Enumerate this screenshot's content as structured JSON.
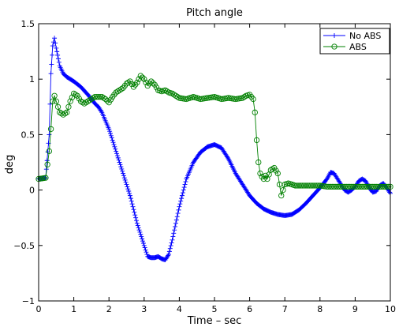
{
  "chart_data": {
    "type": "line",
    "title": "Pitch angle",
    "xlabel": "Time – sec",
    "ylabel": "deg",
    "xlim": [
      0,
      10
    ],
    "ylim": [
      -1,
      1.5
    ],
    "xticks": [
      0,
      1,
      2,
      3,
      4,
      5,
      6,
      7,
      8,
      9,
      10
    ],
    "xtick_labels": [
      "0",
      "1",
      "2",
      "3",
      "4",
      "5",
      "6",
      "7",
      "8",
      "9",
      "10"
    ],
    "yticks": [
      -1,
      -0.5,
      0,
      0.5,
      1,
      1.5
    ],
    "ytick_labels": [
      "−1",
      "−0.5",
      "0",
      "0.5",
      "1",
      "1.5"
    ],
    "grid": false,
    "legend_position": "top-right",
    "series": [
      {
        "name": "No ABS",
        "color": "#0000ff",
        "marker": "plus",
        "points": [
          [
            0,
            0.1
          ],
          [
            0.1,
            0.105
          ],
          [
            0.2,
            0.11
          ],
          [
            0.3,
            0.5
          ],
          [
            0.35,
            1.05
          ],
          [
            0.4,
            1.3
          ],
          [
            0.45,
            1.37
          ],
          [
            0.5,
            1.28
          ],
          [
            0.6,
            1.12
          ],
          [
            0.7,
            1.05
          ],
          [
            0.8,
            1.02
          ],
          [
            0.9,
            1.0
          ],
          [
            1.0,
            0.98
          ],
          [
            1.2,
            0.93
          ],
          [
            1.4,
            0.86
          ],
          [
            1.6,
            0.78
          ],
          [
            1.7,
            0.75
          ],
          [
            1.8,
            0.7
          ],
          [
            2.0,
            0.55
          ],
          [
            2.2,
            0.35
          ],
          [
            2.4,
            0.15
          ],
          [
            2.6,
            -0.05
          ],
          [
            2.8,
            -0.3
          ],
          [
            3.0,
            -0.5
          ],
          [
            3.1,
            -0.6
          ],
          [
            3.2,
            -0.61
          ],
          [
            3.3,
            -0.61
          ],
          [
            3.4,
            -0.6
          ],
          [
            3.5,
            -0.62
          ],
          [
            3.6,
            -0.63
          ],
          [
            3.7,
            -0.58
          ],
          [
            3.8,
            -0.45
          ],
          [
            4.0,
            -0.15
          ],
          [
            4.2,
            0.1
          ],
          [
            4.4,
            0.25
          ],
          [
            4.6,
            0.34
          ],
          [
            4.8,
            0.39
          ],
          [
            5.0,
            0.41
          ],
          [
            5.2,
            0.38
          ],
          [
            5.4,
            0.28
          ],
          [
            5.6,
            0.15
          ],
          [
            5.8,
            0.05
          ],
          [
            6.0,
            -0.05
          ],
          [
            6.2,
            -0.12
          ],
          [
            6.4,
            -0.17
          ],
          [
            6.6,
            -0.2
          ],
          [
            6.8,
            -0.22
          ],
          [
            7.0,
            -0.23
          ],
          [
            7.2,
            -0.22
          ],
          [
            7.4,
            -0.18
          ],
          [
            7.6,
            -0.12
          ],
          [
            7.8,
            -0.05
          ],
          [
            8.0,
            0.02
          ],
          [
            8.2,
            0.1
          ],
          [
            8.3,
            0.16
          ],
          [
            8.4,
            0.15
          ],
          [
            8.5,
            0.1
          ],
          [
            8.7,
            0.0
          ],
          [
            8.8,
            -0.02
          ],
          [
            8.9,
            0.0
          ],
          [
            9.0,
            0.03
          ],
          [
            9.1,
            0.08
          ],
          [
            9.2,
            0.1
          ],
          [
            9.3,
            0.08
          ],
          [
            9.4,
            0.02
          ],
          [
            9.5,
            -0.02
          ],
          [
            9.6,
            -0.01
          ],
          [
            9.7,
            0.04
          ],
          [
            9.8,
            0.06
          ],
          [
            9.9,
            0.02
          ],
          [
            10.0,
            -0.03
          ]
        ]
      },
      {
        "name": "ABS",
        "color": "#008000",
        "marker": "circle",
        "points": [
          [
            0,
            0.1
          ],
          [
            0.1,
            0.105
          ],
          [
            0.2,
            0.11
          ],
          [
            0.3,
            0.35
          ],
          [
            0.35,
            0.55
          ],
          [
            0.4,
            0.8
          ],
          [
            0.45,
            0.85
          ],
          [
            0.5,
            0.8
          ],
          [
            0.6,
            0.7
          ],
          [
            0.7,
            0.68
          ],
          [
            0.8,
            0.7
          ],
          [
            0.9,
            0.8
          ],
          [
            1.0,
            0.87
          ],
          [
            1.1,
            0.85
          ],
          [
            1.2,
            0.8
          ],
          [
            1.3,
            0.78
          ],
          [
            1.4,
            0.8
          ],
          [
            1.5,
            0.82
          ],
          [
            1.6,
            0.84
          ],
          [
            1.8,
            0.84
          ],
          [
            1.9,
            0.82
          ],
          [
            2.0,
            0.79
          ],
          [
            2.1,
            0.84
          ],
          [
            2.2,
            0.88
          ],
          [
            2.3,
            0.9
          ],
          [
            2.4,
            0.92
          ],
          [
            2.5,
            0.96
          ],
          [
            2.6,
            0.98
          ],
          [
            2.7,
            0.93
          ],
          [
            2.8,
            0.97
          ],
          [
            2.9,
            1.03
          ],
          [
            3.0,
            1.0
          ],
          [
            3.1,
            0.94
          ],
          [
            3.2,
            0.98
          ],
          [
            3.3,
            0.95
          ],
          [
            3.4,
            0.9
          ],
          [
            3.5,
            0.89
          ],
          [
            3.6,
            0.9
          ],
          [
            3.7,
            0.88
          ],
          [
            3.8,
            0.87
          ],
          [
            3.9,
            0.85
          ],
          [
            4.0,
            0.83
          ],
          [
            4.2,
            0.82
          ],
          [
            4.4,
            0.84
          ],
          [
            4.6,
            0.82
          ],
          [
            4.8,
            0.83
          ],
          [
            5.0,
            0.84
          ],
          [
            5.2,
            0.82
          ],
          [
            5.4,
            0.83
          ],
          [
            5.6,
            0.82
          ],
          [
            5.8,
            0.83
          ],
          [
            5.9,
            0.85
          ],
          [
            6.0,
            0.86
          ],
          [
            6.1,
            0.82
          ],
          [
            6.15,
            0.7
          ],
          [
            6.2,
            0.45
          ],
          [
            6.25,
            0.25
          ],
          [
            6.3,
            0.15
          ],
          [
            6.35,
            0.12
          ],
          [
            6.4,
            0.1
          ],
          [
            6.45,
            0.13
          ],
          [
            6.5,
            0.1
          ],
          [
            6.6,
            0.18
          ],
          [
            6.7,
            0.2
          ],
          [
            6.8,
            0.15
          ],
          [
            6.85,
            0.05
          ],
          [
            6.9,
            -0.05
          ],
          [
            7.0,
            0.05
          ],
          [
            7.1,
            0.06
          ],
          [
            7.2,
            0.05
          ],
          [
            7.3,
            0.04
          ],
          [
            7.4,
            0.04
          ],
          [
            7.6,
            0.04
          ],
          [
            7.8,
            0.04
          ],
          [
            8.0,
            0.04
          ],
          [
            8.2,
            0.03
          ],
          [
            8.4,
            0.03
          ],
          [
            8.6,
            0.03
          ],
          [
            8.8,
            0.03
          ],
          [
            9.0,
            0.03
          ],
          [
            9.2,
            0.03
          ],
          [
            9.4,
            0.03
          ],
          [
            9.6,
            0.03
          ],
          [
            9.8,
            0.03
          ],
          [
            10.0,
            0.03
          ]
        ]
      }
    ]
  }
}
